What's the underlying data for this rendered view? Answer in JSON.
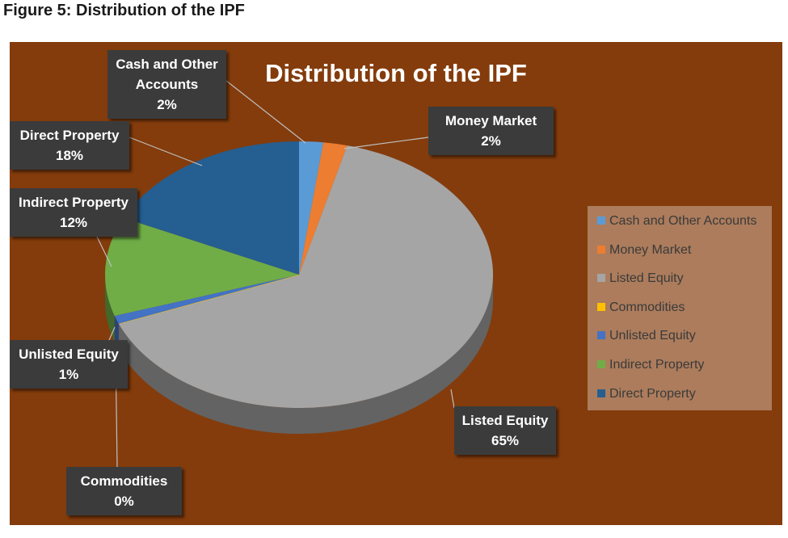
{
  "caption": "Figure 5: Distribution of the IPF",
  "chart_data": {
    "type": "pie",
    "title": "Distribution of the IPF",
    "categories": [
      "Cash and Other Accounts",
      "Money Market",
      "Listed Equity",
      "Commodities",
      "Unlisted Equity",
      "Indirect Property",
      "Direct Property"
    ],
    "values": [
      2,
      2,
      65,
      0,
      1,
      12,
      18
    ],
    "value_labels": [
      "2%",
      "2%",
      "65%",
      "0%",
      "1%",
      "12%",
      "18%"
    ],
    "colors": [
      "#5b9bd5",
      "#ed7d31",
      "#a5a5a5",
      "#ffc000",
      "#4472c4",
      "#70ad47",
      "#255e91"
    ],
    "legend": "right"
  }
}
